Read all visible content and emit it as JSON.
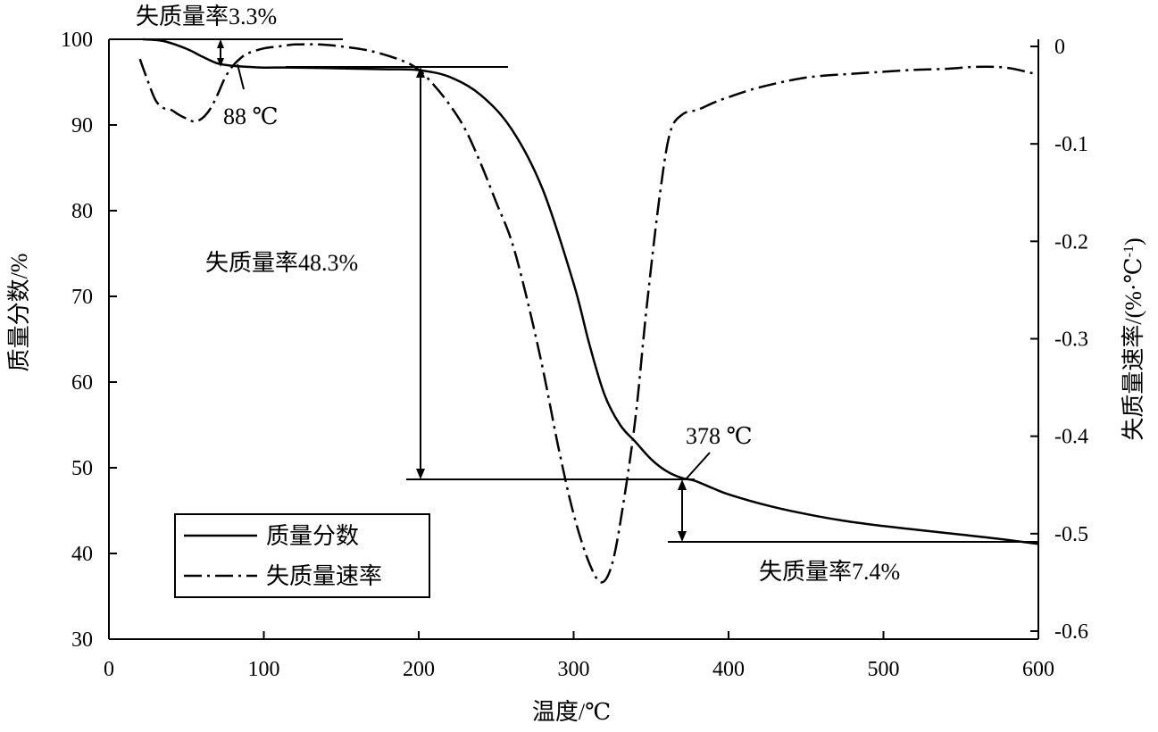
{
  "chart_data": {
    "type": "line",
    "x_axis": {
      "label": "温度/℃",
      "range": [
        0,
        600
      ],
      "ticks": [
        "0",
        "100",
        "200",
        "300",
        "400",
        "500",
        "600"
      ]
    },
    "y_left": {
      "label": "质量分数/%",
      "range": [
        30,
        100
      ],
      "ticks": [
        "30",
        "40",
        "50",
        "60",
        "70",
        "80",
        "90",
        "100"
      ]
    },
    "y_right": {
      "label": "失质量速率/(%·℃",
      "label_sup": "-1",
      "label_end": ")",
      "range": [
        -0.6,
        0
      ],
      "ticks": [
        "0",
        "-0.1",
        "-0.2",
        "-0.3",
        "-0.4",
        "-0.5",
        "-0.6"
      ]
    },
    "grid": false,
    "legend_position": "bottom-left",
    "series": [
      {
        "name": "质量分数",
        "axis": "left",
        "style": "solid",
        "x": [
          22,
          35,
          50,
          60,
          70,
          80,
          88,
          100,
          120,
          150,
          180,
          200,
          220,
          240,
          260,
          280,
          300,
          310,
          320,
          330,
          340,
          350,
          360,
          370,
          378,
          390,
          400,
          425,
          450,
          475,
          500,
          525,
          550,
          575,
          600
        ],
        "y": [
          100,
          99.8,
          98.9,
          98.0,
          97.2,
          96.9,
          96.8,
          96.7,
          96.7,
          96.6,
          96.5,
          96.4,
          95.6,
          93.5,
          89.5,
          82.5,
          71.5,
          64.5,
          58.5,
          55.0,
          53.0,
          51.0,
          49.6,
          48.8,
          48.5,
          47.6,
          46.9,
          45.6,
          44.6,
          43.8,
          43.2,
          42.7,
          42.2,
          41.7,
          41.1
        ]
      },
      {
        "name": "失质量速率",
        "axis": "right",
        "style": "dash-dot",
        "x": [
          20,
          25,
          30,
          35,
          40,
          45,
          50,
          55,
          60,
          65,
          70,
          75,
          80,
          85,
          90,
          100,
          110,
          120,
          135,
          150,
          170,
          190,
          200,
          210,
          220,
          230,
          240,
          250,
          260,
          270,
          280,
          290,
          300,
          310,
          318,
          325,
          332,
          340,
          347,
          355,
          362,
          370,
          380,
          390,
          400,
          420,
          450,
          480,
          500,
          520,
          540,
          560,
          580,
          600
        ],
        "y": [
          -0.013,
          -0.035,
          -0.055,
          -0.063,
          -0.065,
          -0.07,
          -0.074,
          -0.077,
          -0.074,
          -0.065,
          -0.05,
          -0.032,
          -0.02,
          -0.012,
          -0.007,
          -0.002,
          0.0,
          0.002,
          0.002,
          0.0,
          -0.005,
          -0.015,
          -0.024,
          -0.04,
          -0.06,
          -0.085,
          -0.12,
          -0.16,
          -0.2,
          -0.26,
          -0.33,
          -0.41,
          -0.48,
          -0.53,
          -0.55,
          -0.53,
          -0.47,
          -0.38,
          -0.27,
          -0.16,
          -0.09,
          -0.07,
          -0.065,
          -0.058,
          -0.052,
          -0.042,
          -0.032,
          -0.028,
          -0.026,
          -0.024,
          -0.023,
          -0.021,
          -0.022,
          -0.029
        ]
      }
    ],
    "annotations": {
      "mass_loss_1": "失质量率3.3%",
      "peak_1": "88 ℃",
      "mass_loss_2": "失质量率48.3%",
      "peak_2": "378 ℃",
      "mass_loss_3": "失质量率7.4%"
    }
  }
}
